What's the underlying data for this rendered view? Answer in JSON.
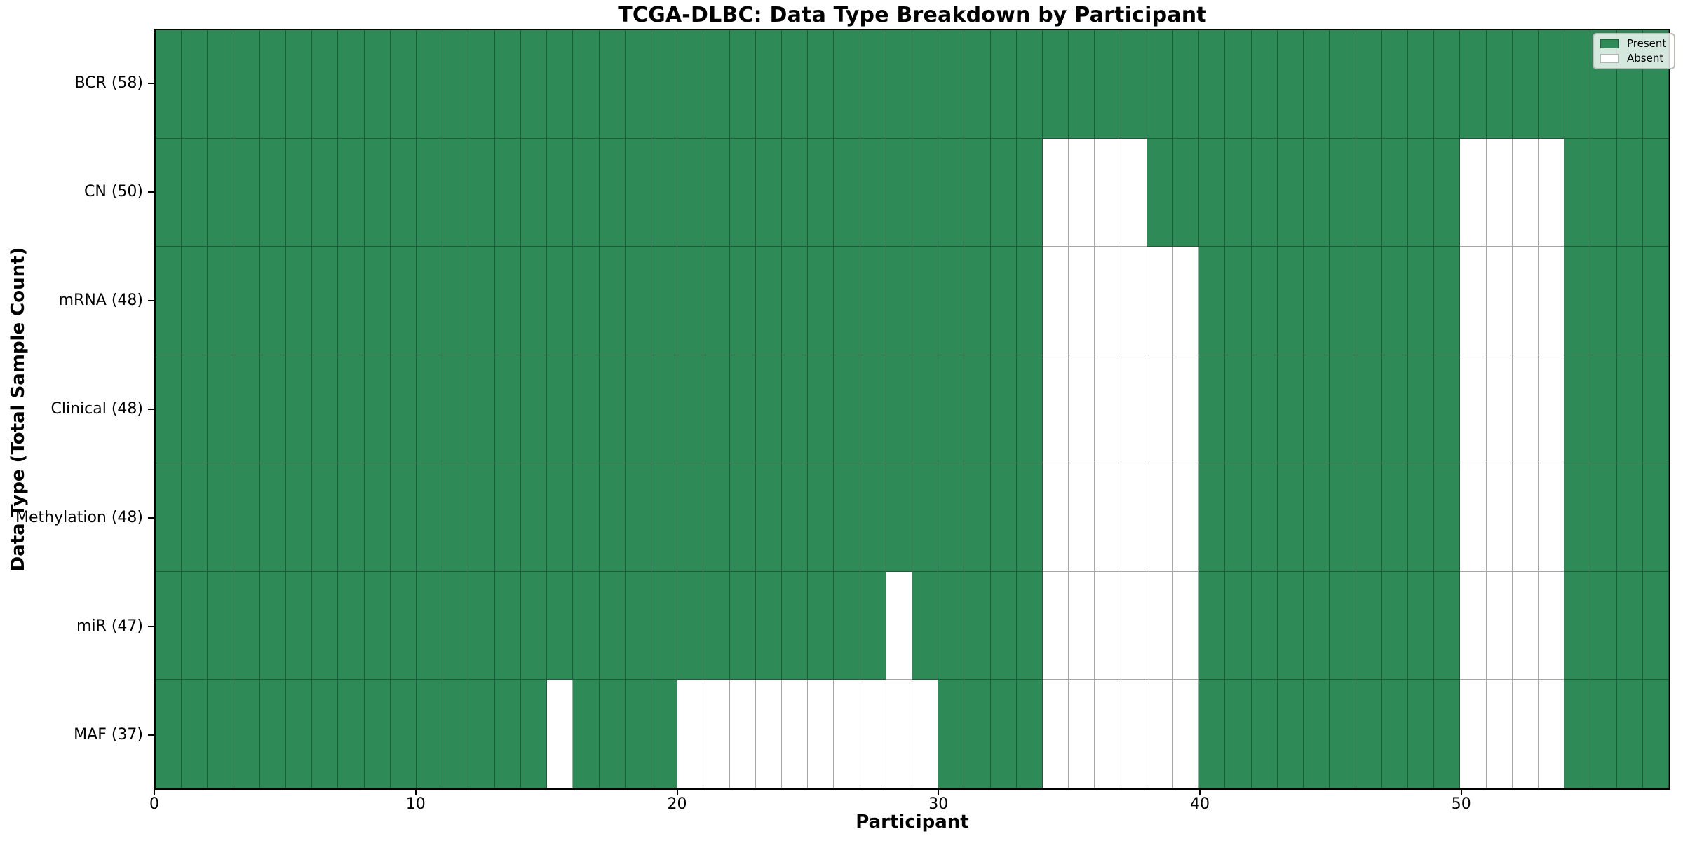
{
  "title": "TCGA-DLBC: Data Type Breakdown by Participant",
  "colors": {
    "present": "#2e8b57",
    "absent": "#ffffff",
    "cell_edge": "rgba(0,0,0,0.35)",
    "spine": "#000000"
  },
  "chart_data": {
    "type": "heatmap",
    "title": "TCGA-DLBC: Data Type Breakdown by Participant",
    "xlabel": "Participant",
    "ylabel": "Data Type (Total Sample Count)",
    "x_range": [
      0,
      58
    ],
    "n_participants": 58,
    "grid": "cell edges on, thin dark lines",
    "x_ticks": [
      {
        "label": "0",
        "value": 0
      },
      {
        "label": "10",
        "value": 10
      },
      {
        "label": "20",
        "value": 20
      },
      {
        "label": "30",
        "value": 30
      },
      {
        "label": "40",
        "value": 40
      },
      {
        "label": "50",
        "value": 50
      }
    ],
    "cell_encoding": {
      "present": 1,
      "absent": 0
    },
    "rows": [
      {
        "key": "bcr",
        "label": "BCR (58)",
        "data_type": "BCR",
        "present_count": 58,
        "absent_participants": []
      },
      {
        "key": "cn",
        "label": "CN (50)",
        "data_type": "CN",
        "present_count": 50,
        "absent_participants": [
          34,
          35,
          36,
          37,
          50,
          51,
          52,
          53
        ]
      },
      {
        "key": "mrna",
        "label": "mRNA (48)",
        "data_type": "mRNA",
        "present_count": 48,
        "absent_participants": [
          34,
          35,
          36,
          37,
          38,
          39,
          50,
          51,
          52,
          53
        ]
      },
      {
        "key": "clinical",
        "label": "Clinical (48)",
        "data_type": "Clinical",
        "present_count": 48,
        "absent_participants": [
          34,
          35,
          36,
          37,
          38,
          39,
          50,
          51,
          52,
          53
        ]
      },
      {
        "key": "methylation",
        "label": "Methylation (48)",
        "data_type": "Methylation",
        "present_count": 48,
        "absent_participants": [
          34,
          35,
          36,
          37,
          38,
          39,
          50,
          51,
          52,
          53
        ]
      },
      {
        "key": "mir",
        "label": "miR (47)",
        "data_type": "miR",
        "present_count": 47,
        "absent_participants": [
          28,
          34,
          35,
          36,
          37,
          38,
          39,
          50,
          51,
          52,
          53
        ]
      },
      {
        "key": "maf",
        "label": "MAF (37)",
        "data_type": "MAF",
        "present_count": 37,
        "absent_participants": [
          15,
          20,
          21,
          22,
          23,
          24,
          25,
          26,
          27,
          28,
          29,
          34,
          35,
          36,
          37,
          38,
          39,
          50,
          51,
          52,
          53
        ]
      }
    ],
    "legend": {
      "position": "upper right",
      "entries": [
        {
          "label": "Present",
          "color": "#2e8b57"
        },
        {
          "label": "Absent",
          "color": "#ffffff"
        }
      ]
    }
  }
}
